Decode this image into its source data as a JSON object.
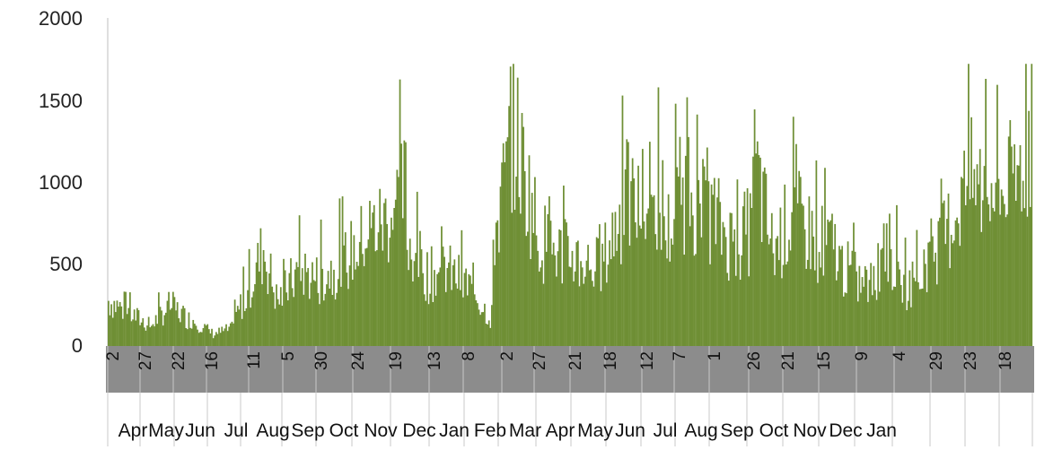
{
  "chart_data": {
    "type": "bar",
    "title": "",
    "xlabel": "",
    "ylabel": "",
    "ylim": [
      0,
      2000
    ],
    "yticks": [
      0,
      500,
      1000,
      1500,
      2000
    ],
    "grid": false,
    "legend": "none",
    "bar_color": "#6f8f35",
    "day_ticks": [
      "2",
      "27",
      "22",
      "16",
      "11",
      "5",
      "30",
      "24",
      "19",
      "13",
      "8",
      "2",
      "27",
      "21",
      "18",
      "12",
      "7",
      "1",
      "26",
      "21",
      "15",
      "9",
      "4",
      "29",
      "23",
      "18"
    ],
    "month_labels": [
      "Apr",
      "May",
      "Jun",
      "Jul",
      "Aug",
      "Sep",
      "Oct",
      "Nov",
      "Dec",
      "Jan",
      "Feb",
      "Mar",
      "Apr",
      "May",
      "Jun",
      "Jul",
      "Aug",
      "Sep",
      "Oct",
      "Nov",
      "Dec",
      "Jan"
    ],
    "monthly_profile": [
      {
        "month": "Apr",
        "values": [
          300,
          140
        ]
      },
      {
        "month": "May",
        "values": [
          120,
          270,
          160
        ]
      },
      {
        "month": "Jun",
        "values": [
          180,
          80,
          120
        ]
      },
      {
        "month": "Jul",
        "values": [
          180,
          380,
          640,
          280
        ]
      },
      {
        "month": "Aug",
        "values": [
          300,
          500,
          430
        ]
      },
      {
        "month": "Sep",
        "values": [
          460,
          540,
          700
        ]
      },
      {
        "month": "Oct",
        "values": [
          740,
          820,
          1050
        ]
      },
      {
        "month": "Nov",
        "values": [
          700,
          460,
          520
        ]
      },
      {
        "month": "Dec",
        "values": [
          480,
          380,
          150
        ]
      },
      {
        "month": "Jan",
        "values": [
          700,
          1400,
          800
        ]
      },
      {
        "month": "Feb",
        "values": [
          720,
          620,
          580
        ]
      },
      {
        "month": "Mar",
        "values": [
          560,
          520,
          900
        ]
      },
      {
        "month": "Apr",
        "values": [
          1000,
          880,
          950
        ]
      },
      {
        "month": "May",
        "values": [
          720,
          1050,
          820
        ]
      },
      {
        "month": "Jun",
        "values": [
          900,
          700,
          760
        ]
      },
      {
        "month": "Jul",
        "values": [
          1280,
          620,
          900
        ]
      },
      {
        "month": "Aug",
        "values": [
          860,
          700,
          650
        ]
      },
      {
        "month": "Sep",
        "values": [
          560,
          420,
          400
        ]
      },
      {
        "month": "Oct",
        "values": [
          800,
          380,
          460
        ]
      },
      {
        "month": "Nov",
        "values": [
          560,
          720,
          1080
        ]
      },
      {
        "month": "Dec",
        "values": [
          1100,
          1000,
          1060
        ]
      },
      {
        "month": "Jan",
        "values": [
          900,
          1550
        ]
      }
    ]
  }
}
